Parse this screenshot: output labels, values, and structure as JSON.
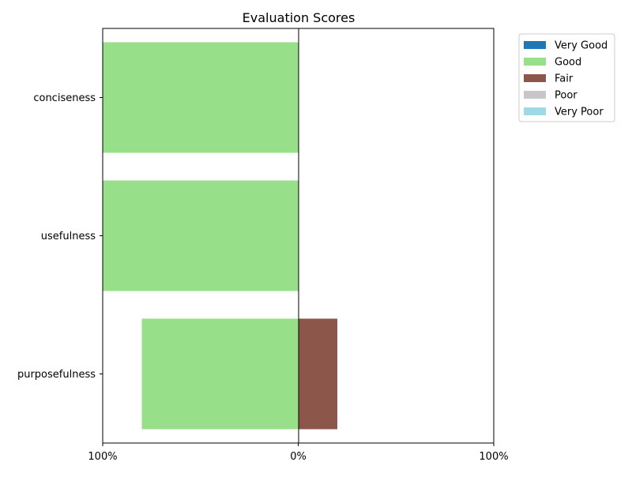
{
  "chart_data": {
    "type": "bar",
    "orientation": "horizontal",
    "stacked": "diverging",
    "title": "Evaluation Scores",
    "xlabel": "",
    "ylabel": "",
    "categories": [
      "conciseness",
      "usefulness",
      "purposefulness"
    ],
    "x_ticks": [
      {
        "value": -100,
        "label": "100%"
      },
      {
        "value": 0,
        "label": "0%"
      },
      {
        "value": 100,
        "label": "100%"
      }
    ],
    "xlim": [
      -100,
      100
    ],
    "legend_position": "outside-top-right",
    "grid": false,
    "series": [
      {
        "name": "Very Good",
        "color": "#1f77b4",
        "side": "negative",
        "values": [
          0,
          0,
          0
        ]
      },
      {
        "name": "Good",
        "color": "#98df8a",
        "side": "negative",
        "values": [
          100,
          100,
          80
        ]
      },
      {
        "name": "Fair",
        "color": "#8c564b",
        "side": "positive",
        "values": [
          0,
          0,
          20
        ]
      },
      {
        "name": "Poor",
        "color": "#c7c7c7",
        "side": "positive",
        "values": [
          0,
          0,
          0
        ]
      },
      {
        "name": "Very Poor",
        "color": "#9edae5",
        "side": "positive",
        "values": [
          0,
          0,
          0
        ]
      }
    ]
  }
}
